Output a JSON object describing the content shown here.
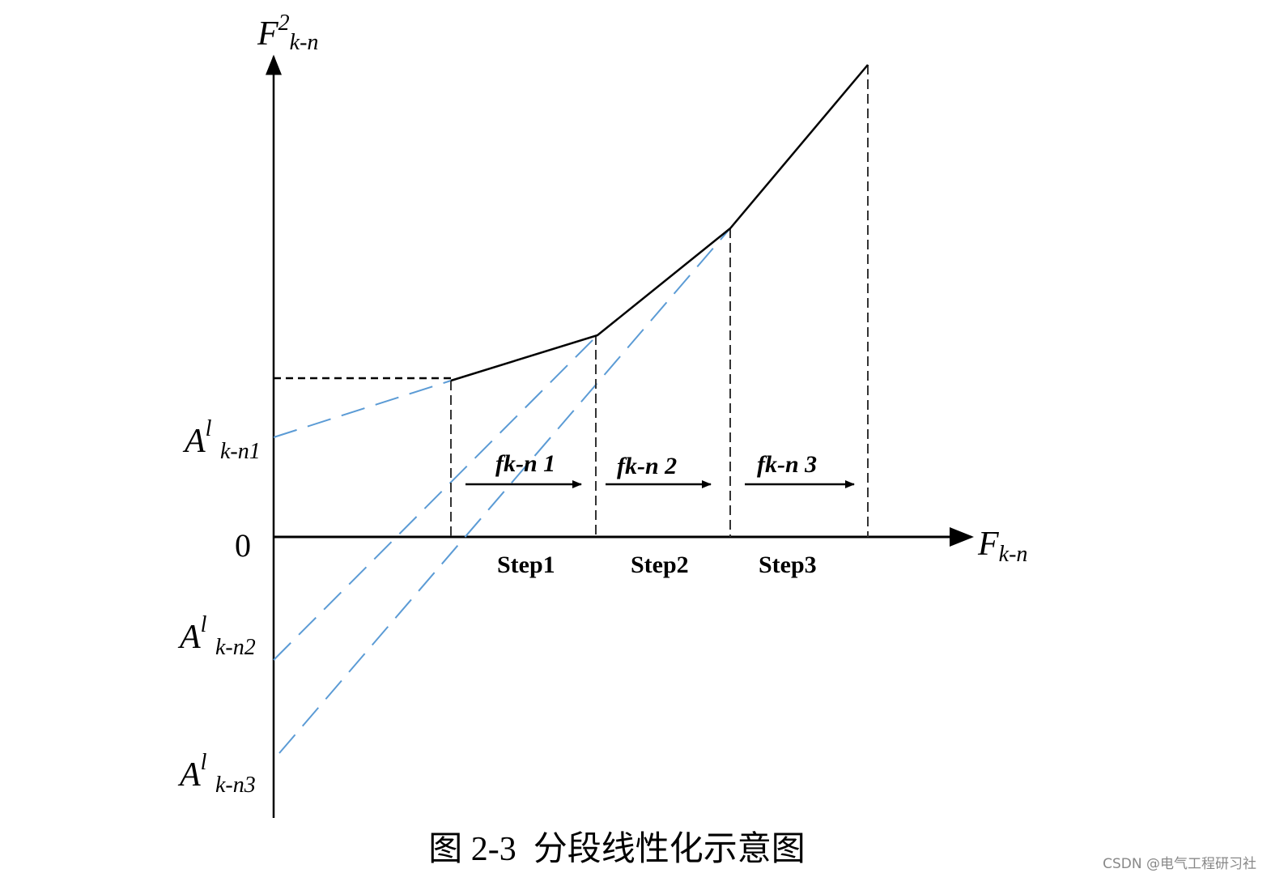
{
  "axes": {
    "y_label": {
      "base": "F",
      "sup": "2",
      "sub": "k-n"
    },
    "x_label": {
      "base": "F",
      "sub": "k-n"
    },
    "origin": "0"
  },
  "intercepts": [
    {
      "base": "A",
      "sup": "l",
      "sub": "k-n1"
    },
    {
      "base": "A",
      "sup": "l",
      "sub": "k-n2"
    },
    {
      "base": "A",
      "sup": "l",
      "sub": "k-n3"
    }
  ],
  "segments": [
    {
      "slope_label": "fk-n 1",
      "step": "Step1"
    },
    {
      "slope_label": "fk-n 2",
      "step": "Step2"
    },
    {
      "slope_label": "fk-n 3",
      "step": "Step3"
    }
  ],
  "caption": "图 2-3  分段线性化示意图",
  "watermark": "CSDN @电气工程研习社"
}
